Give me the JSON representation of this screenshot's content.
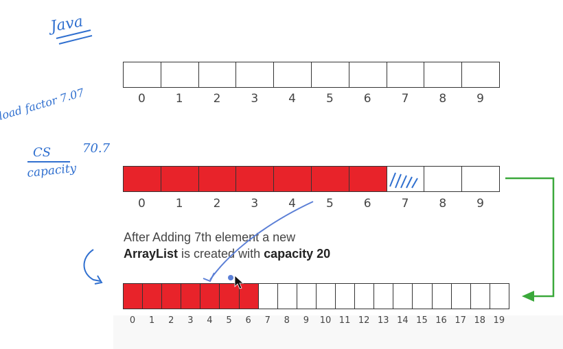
{
  "handwriting": {
    "java": "Java",
    "load_factor": "load factor 7.07",
    "cs": "CS",
    "cs_value": "70.7",
    "capacity": "capacity"
  },
  "array_top": {
    "indices": [
      "0",
      "1",
      "2",
      "3",
      "4",
      "5",
      "6",
      "7",
      "8",
      "9"
    ],
    "filled_count": 0
  },
  "array_middle": {
    "indices": [
      "0",
      "1",
      "2",
      "3",
      "4",
      "5",
      "6",
      "7",
      "8",
      "9"
    ],
    "filled_count": 7,
    "hatched_index": 7
  },
  "caption": {
    "line1": "After Adding 7th element a new",
    "line2_bold1": "ArrayList",
    "line2_mid": " is created with ",
    "line2_bold2": "capacity 20"
  },
  "array_bottom": {
    "indices": [
      "0",
      "1",
      "2",
      "3",
      "4",
      "5",
      "6",
      "7",
      "8",
      "9",
      "10",
      "11",
      "12",
      "13",
      "14",
      "15",
      "16",
      "17",
      "18",
      "19"
    ],
    "filled_count": 7
  },
  "colors": {
    "filled": "#e8232a",
    "green_arrow": "#3aa83a",
    "ink": "#2f6fcf"
  }
}
